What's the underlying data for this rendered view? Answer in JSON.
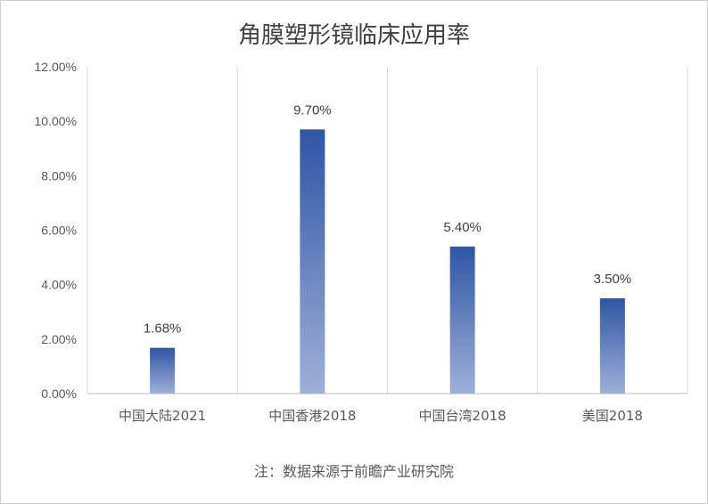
{
  "chart_data": {
    "type": "bar",
    "title": "角膜塑形镜临床应用率",
    "categories": [
      "中国大陆2021",
      "中国香港2018",
      "中国台湾2018",
      "美国2018"
    ],
    "values": [
      1.68,
      9.7,
      5.4,
      3.5
    ],
    "data_labels": [
      "1.68%",
      "9.70%",
      "5.40%",
      "3.50%"
    ],
    "ylim": [
      0,
      12
    ],
    "yticks": [
      0,
      2,
      4,
      6,
      8,
      10,
      12
    ],
    "ytick_labels": [
      "0.00%",
      "2.00%",
      "4.00%",
      "6.00%",
      "8.00%",
      "10.00%",
      "12.00%"
    ],
    "xlabel": "",
    "ylabel": "",
    "grid": "vertical category separators",
    "legend": "none",
    "colors": {
      "bar_top": "#2f55a4",
      "bar_bottom": "#9fb0d8"
    }
  },
  "footnote": "注：数据来源于前瞻产业研究院"
}
